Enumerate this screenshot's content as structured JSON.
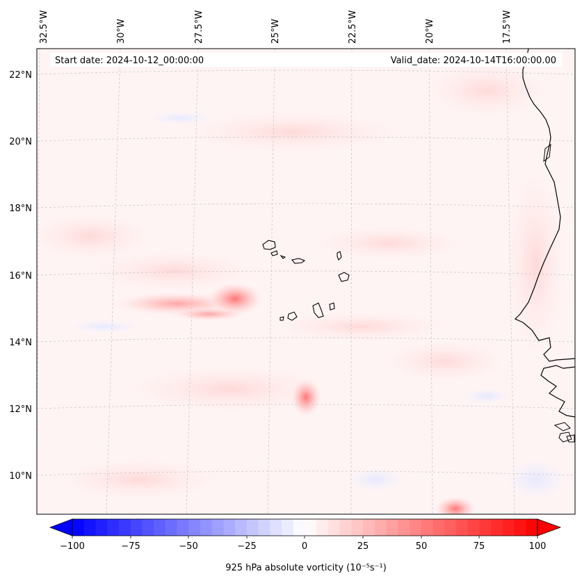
{
  "map": {
    "start_date": "Start date: 2024-10-12_00:00:00",
    "valid_date": "Valid_date: 2024-10-14T16:00:00.00",
    "lon_labels": [
      "32.5°W",
      "30°W",
      "27.5°W",
      "25°W",
      "22.5°W",
      "20°W",
      "17.5°W"
    ],
    "lat_labels": [
      "22°N",
      "20°N",
      "18°N",
      "16°N",
      "14°N",
      "12°N",
      "10°N"
    ],
    "colors": {
      "ocean_base": "#fff4f4",
      "coast": "#000000",
      "grid": "#c8c8c8",
      "vorticity_positive": "#ff0000",
      "vorticity_negative": "#0000ff"
    },
    "features": [
      {
        "name": "vorticity-maximum-west-of-cape-verde",
        "lat": 15.3,
        "lon": -26.1,
        "value": 38
      },
      {
        "name": "vorticity-maximum-south",
        "lat": 12.4,
        "lon": -23.8,
        "value": 30
      },
      {
        "name": "vorticity-maximum-far-south",
        "lat": 8.9,
        "lon": -19.7,
        "value": 22
      }
    ]
  },
  "colorbar": {
    "label": "925 hPa absolute vorticity (10⁻⁵s⁻¹)",
    "min": -100,
    "max": 100,
    "ticks": [
      "−100",
      "−75",
      "−50",
      "−25",
      "0",
      "25",
      "50",
      "75",
      "100"
    ]
  }
}
